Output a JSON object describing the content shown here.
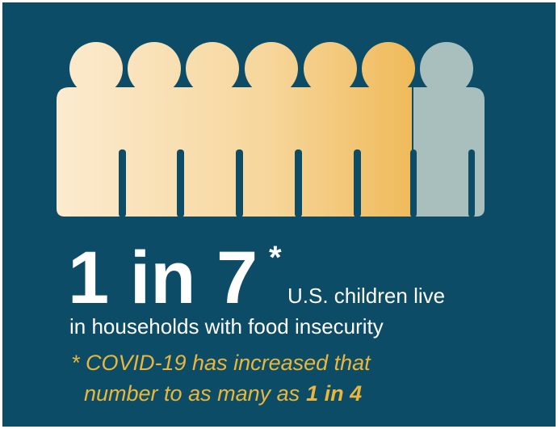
{
  "headline": {
    "number": "1 in 7",
    "asterisk": "*",
    "line_1": "U.S. children live",
    "line_2": "in households with food insecurity"
  },
  "note": {
    "line_1": "* COVID-19 has increased that",
    "line_2": "number to as many as",
    "highlight": "1 in 4"
  }
}
